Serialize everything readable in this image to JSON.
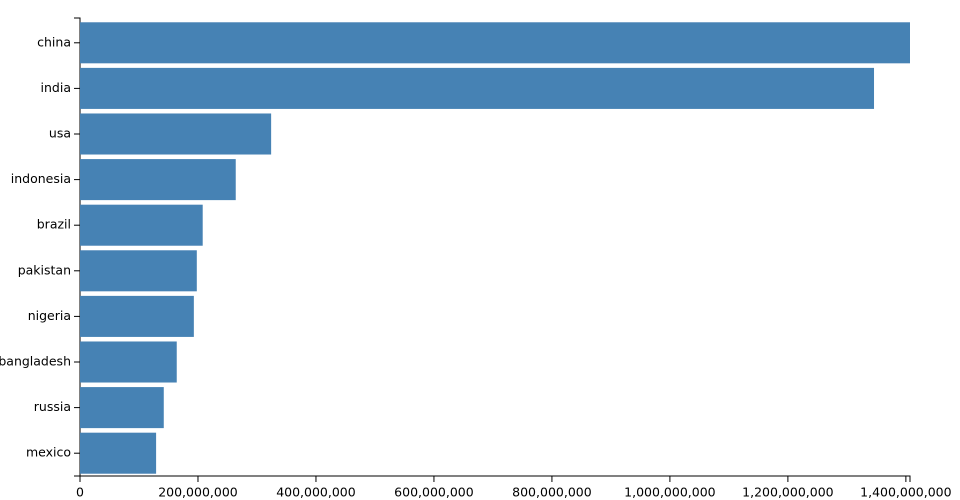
{
  "chart_data": {
    "type": "bar",
    "orientation": "horizontal",
    "categories": [
      "china",
      "india",
      "usa",
      "indonesia",
      "brazil",
      "pakistan",
      "nigeria",
      "bangladesh",
      "russia",
      "mexico"
    ],
    "values": [
      1407000000,
      1346000000,
      324000000,
      264000000,
      208000000,
      198000000,
      193000000,
      164000000,
      142000000,
      129000000
    ],
    "color": "#4682b4",
    "xlim": [
      0,
      1407000000
    ],
    "xticks": [
      0,
      {
        "value": 200000000,
        "label": "200,000,000"
      },
      {
        "value": 400000000,
        "label": "400,000,000"
      },
      {
        "value": 600000000,
        "label": "600,000,000"
      },
      {
        "value": 800000000,
        "label": "800,000,000"
      },
      {
        "value": 1000000000,
        "label": "1,000,000,000"
      },
      {
        "value": 1200000000,
        "label": "1,200,000,000"
      },
      {
        "value": 1400000000,
        "label": "1,400,000,000"
      }
    ]
  }
}
